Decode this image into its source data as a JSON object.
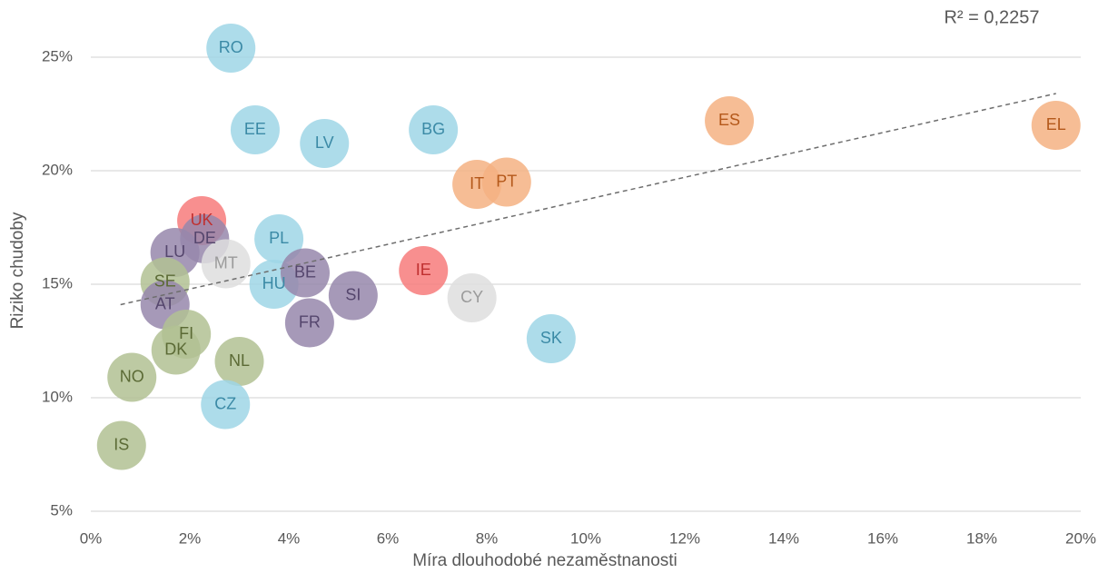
{
  "chart_data": {
    "type": "scatter",
    "x_label": "Míra dlouhodobé nezaměstnanosti",
    "y_label": "Riziko chudoby",
    "annotation": "R² = 0,2257",
    "xlim": [
      0,
      20
    ],
    "ylim": [
      5,
      27
    ],
    "xticks": [
      {
        "value": 0,
        "label": "0%"
      },
      {
        "value": 2,
        "label": "2%"
      },
      {
        "value": 4,
        "label": "4%"
      },
      {
        "value": 6,
        "label": "6%"
      },
      {
        "value": 8,
        "label": "8%"
      },
      {
        "value": 10,
        "label": "10%"
      },
      {
        "value": 12,
        "label": "12%"
      },
      {
        "value": 14,
        "label": "14%"
      },
      {
        "value": 16,
        "label": "16%"
      },
      {
        "value": 18,
        "label": "18%"
      },
      {
        "value": 20,
        "label": "20%"
      }
    ],
    "yticks": [
      {
        "value": 5,
        "label": "5%"
      },
      {
        "value": 10,
        "label": "10%"
      },
      {
        "value": 15,
        "label": "15%"
      },
      {
        "value": 20,
        "label": "20%"
      },
      {
        "value": 25,
        "label": "25%"
      }
    ],
    "grid": true,
    "palette": [
      {
        "fill": "#9fd6e6",
        "text": "#3b8aa6"
      },
      {
        "fill": "#f4b183",
        "text": "#b4581a"
      },
      {
        "fill": "#f77b7b",
        "text": "#c03030"
      },
      {
        "fill": "#9787ab",
        "text": "#55466d"
      },
      {
        "fill": "#b2c193",
        "text": "#5b6a35"
      },
      {
        "fill": "#dedede",
        "text": "#9a9a9a"
      }
    ],
    "points": [
      {
        "label": "RO",
        "x": 2.83,
        "y": 25.4,
        "group": 0
      },
      {
        "label": "EE",
        "x": 3.32,
        "y": 21.8,
        "group": 0
      },
      {
        "label": "LV",
        "x": 4.72,
        "y": 21.2,
        "group": 0
      },
      {
        "label": "BG",
        "x": 6.92,
        "y": 21.8,
        "group": 0
      },
      {
        "label": "ES",
        "x": 12.9,
        "y": 22.2,
        "group": 1
      },
      {
        "label": "EL",
        "x": 19.5,
        "y": 22.0,
        "group": 1
      },
      {
        "label": "IT",
        "x": 7.8,
        "y": 19.4,
        "group": 1
      },
      {
        "label": "PT",
        "x": 8.4,
        "y": 19.5,
        "group": 1
      },
      {
        "label": "UK",
        "x": 2.24,
        "y": 17.8,
        "group": 2
      },
      {
        "label": "DE",
        "x": 2.3,
        "y": 17.0,
        "group": 3
      },
      {
        "label": "LU",
        "x": 1.7,
        "y": 16.4,
        "group": 3
      },
      {
        "label": "MT",
        "x": 2.73,
        "y": 15.9,
        "group": 5
      },
      {
        "label": "PL",
        "x": 3.8,
        "y": 17.0,
        "group": 0
      },
      {
        "label": "SE",
        "x": 1.5,
        "y": 15.1,
        "group": 4
      },
      {
        "label": "HU",
        "x": 3.7,
        "y": 15.0,
        "group": 0
      },
      {
        "label": "BE",
        "x": 4.33,
        "y": 15.5,
        "group": 3
      },
      {
        "label": "IE",
        "x": 6.72,
        "y": 15.6,
        "group": 2
      },
      {
        "label": "SI",
        "x": 5.3,
        "y": 14.5,
        "group": 3
      },
      {
        "label": "CY",
        "x": 7.7,
        "y": 14.4,
        "group": 5
      },
      {
        "label": "AT",
        "x": 1.5,
        "y": 14.1,
        "group": 3
      },
      {
        "label": "FR",
        "x": 4.42,
        "y": 13.3,
        "group": 3
      },
      {
        "label": "FI",
        "x": 1.93,
        "y": 12.8,
        "group": 4
      },
      {
        "label": "DK",
        "x": 1.72,
        "y": 12.1,
        "group": 4
      },
      {
        "label": "SK",
        "x": 9.3,
        "y": 12.6,
        "group": 0
      },
      {
        "label": "NL",
        "x": 3.0,
        "y": 11.6,
        "group": 4
      },
      {
        "label": "NO",
        "x": 0.83,
        "y": 10.9,
        "group": 4
      },
      {
        "label": "CZ",
        "x": 2.72,
        "y": 9.7,
        "group": 0
      },
      {
        "label": "IS",
        "x": 0.62,
        "y": 7.9,
        "group": 4
      }
    ],
    "trendline": {
      "x": [
        0.6,
        19.5
      ],
      "y": [
        14.1,
        23.4
      ],
      "color": "#6e6e6e"
    }
  }
}
